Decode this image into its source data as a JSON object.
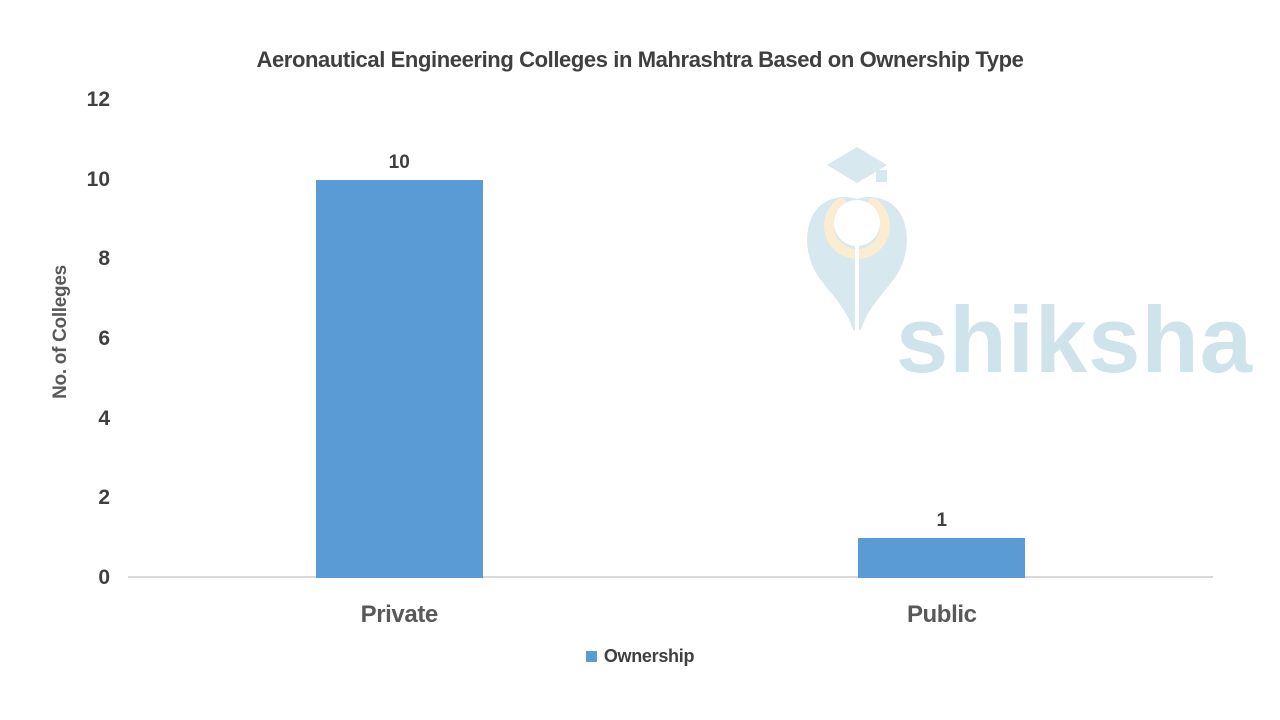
{
  "chart_data": {
    "type": "bar",
    "title": "Aeronautical Engineering Colleges in Mahrashtra Based on Ownership Type",
    "categories": [
      "Private",
      "Public"
    ],
    "values": [
      10,
      1
    ],
    "data_labels": [
      "10",
      "1"
    ],
    "series": [
      {
        "name": "Ownership",
        "values": [
          10,
          1
        ]
      }
    ],
    "xlabel": "",
    "ylabel": "No. of Colleges",
    "ylim": [
      0,
      12
    ],
    "yticks": [
      0,
      2,
      4,
      6,
      8,
      10,
      12
    ],
    "grid": false,
    "legend_position": "bottom",
    "bar_color": "#5B9BD5"
  },
  "legend": {
    "label": "Ownership",
    "swatch_color": "#5B9BD5"
  },
  "watermark": {
    "text": "shiksha",
    "icon": "shiksha-graduation-cap-pen-logo",
    "text_color": "#cfe3ea",
    "icon_color": "#d7e8ee",
    "icon_accent_color": "#fbedd2"
  },
  "colors": {
    "background": "#ffffff",
    "axis_line": "#d9d9d9",
    "text": "#404040"
  }
}
